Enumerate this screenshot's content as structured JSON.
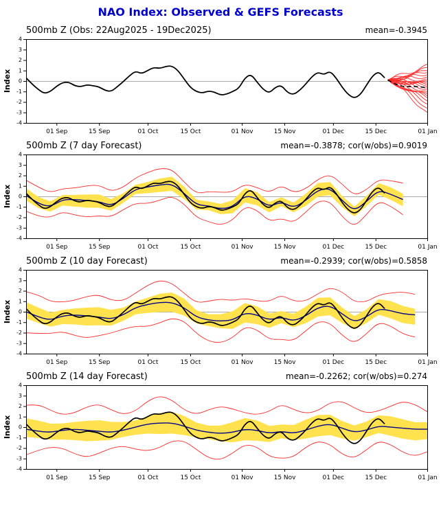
{
  "chart_data": {
    "type": "line",
    "title": "NAO Index: Observed & GEFS Forecasts",
    "ylabel": "Index",
    "ylim": [
      -4,
      4
    ],
    "y_ticks": [
      -4,
      -3,
      -2,
      -1,
      0,
      1,
      2,
      3,
      4
    ],
    "x_range_days": [
      0,
      132
    ],
    "x_ticks": [
      {
        "label": "01 Sep",
        "day": 10
      },
      {
        "label": "15 Sep",
        "day": 24
      },
      {
        "label": "01 Oct",
        "day": 40
      },
      {
        "label": "15 Oct",
        "day": 54
      },
      {
        "label": "01 Nov",
        "day": 71
      },
      {
        "label": "15 Nov",
        "day": 85
      },
      {
        "label": "01 Dec",
        "day": 101
      },
      {
        "label": "15 Dec",
        "day": 115
      },
      {
        "label": "01 Jan",
        "day": 132
      }
    ],
    "grid": "zero-line-only",
    "legend": "none",
    "colors": {
      "title": "#0000cc",
      "obs": "#000000",
      "ensemble": "#ff2a2a",
      "envelope": "#ff2a2a",
      "band": "#ffe24d",
      "forecast_mean": "#00008b",
      "ens_mean_dashed": "#000000",
      "zero_line": "#aaaaaa",
      "axis": "#000000"
    },
    "obs": {
      "name": "Observed NAO index",
      "start_day": 0,
      "step": 2,
      "values": [
        0.3,
        -0.3,
        -0.8,
        -1.2,
        -1.0,
        -0.5,
        -0.15,
        -0.1,
        -0.45,
        -0.55,
        -0.35,
        -0.45,
        -0.55,
        -0.9,
        -1.0,
        -0.55,
        -0.05,
        0.5,
        0.95,
        0.7,
        1.0,
        1.3,
        1.2,
        1.4,
        1.45,
        1.0,
        0.2,
        -0.6,
        -1.0,
        -1.15,
        -0.95,
        -1.05,
        -1.35,
        -1.25,
        -1.0,
        -0.7,
        0.3,
        0.65,
        -0.1,
        -0.8,
        -1.15,
        -0.6,
        -0.4,
        -1.1,
        -1.3,
        -0.9,
        -0.3,
        0.4,
        0.85,
        0.6,
        0.95,
        0.3,
        -0.6,
        -1.3,
        -1.65,
        -1.3,
        -0.4,
        0.5,
        0.9,
        0.3
      ]
    },
    "panels": [
      {
        "id": "obs",
        "title": "500mb Z (Obs: 22Aug2025 - 19Dec2025)",
        "stats": "mean=-0.3945",
        "ensemble": {
          "start_day": 119,
          "start_value": 0.1,
          "end_day": 132,
          "wiggle": 0.35,
          "end_values": [
            1.6,
            1.3,
            1.0,
            0.8,
            0.6,
            0.4,
            0.2,
            0.0,
            -0.2,
            -0.35,
            -0.5,
            -0.65,
            -0.8,
            -1.0,
            -1.2,
            -1.4,
            -1.6,
            -1.9,
            -2.2,
            -2.6,
            -3.0
          ]
        },
        "ens_mean_dashed": [
          [
            119,
            0.1
          ],
          [
            122,
            -0.4
          ],
          [
            125,
            -0.55
          ],
          [
            128,
            -0.5
          ],
          [
            132,
            -0.65
          ]
        ]
      },
      {
        "id": "f7",
        "title": "500mb Z (7 day Forecast)",
        "stats": "mean=-0.3878; cor(w/obs)=0.9019",
        "band_halfwidth": 0.55,
        "envelope_halfwidth": 1.3,
        "wiggle": 0.22,
        "forecast_mean": {
          "start_day": 0,
          "step": 4,
          "values": [
            0.1,
            -0.7,
            -1.0,
            -0.3,
            -0.3,
            -0.4,
            -0.5,
            -0.9,
            -0.2,
            0.7,
            0.9,
            1.1,
            1.2,
            0.3,
            -0.8,
            -0.9,
            -1.2,
            -1.0,
            0.1,
            -0.2,
            -1.0,
            -0.5,
            -1.1,
            -0.4,
            0.6,
            0.8,
            -0.4,
            -1.4,
            -0.5,
            0.6,
            0.2,
            -0.3
          ]
        }
      },
      {
        "id": "f10",
        "title": "500mb Z (10 day Forecast)",
        "stats": "mean=-0.2939; cor(w/obs)=0.5858",
        "band_halfwidth": 0.75,
        "envelope_halfwidth": 1.7,
        "wiggle": 0.25,
        "forecast_mean": {
          "start_day": 0,
          "step": 4,
          "values": [
            0.0,
            -0.5,
            -0.8,
            -0.4,
            -0.3,
            -0.4,
            -0.5,
            -0.7,
            -0.3,
            0.4,
            0.7,
            0.9,
            0.9,
            0.4,
            -0.5,
            -0.8,
            -0.9,
            -0.8,
            -0.1,
            -0.3,
            -0.8,
            -0.5,
            -0.9,
            -0.4,
            0.4,
            0.6,
            -0.2,
            -1.0,
            -0.5,
            0.3,
            0.1,
            -0.2,
            -0.3
          ]
        }
      },
      {
        "id": "f14",
        "title": "500mb Z (14 day Forecast)",
        "stats": "mean=-0.2262; cor(w/obs)=0.274",
        "band_halfwidth": 0.85,
        "envelope_halfwidth": 2.0,
        "wiggle": 0.3,
        "forecast_mean": {
          "start_day": 0,
          "step": 4,
          "values": [
            -0.2,
            -0.4,
            -0.5,
            -0.3,
            -0.2,
            -0.3,
            -0.4,
            -0.5,
            -0.3,
            0.0,
            0.3,
            0.4,
            0.4,
            0.1,
            -0.3,
            -0.5,
            -0.6,
            -0.5,
            -0.2,
            -0.3,
            -0.6,
            -0.4,
            -0.6,
            -0.3,
            0.1,
            0.3,
            -0.1,
            -0.5,
            -0.3,
            0.1,
            0.0,
            -0.1,
            -0.2,
            -0.2
          ]
        }
      }
    ]
  }
}
